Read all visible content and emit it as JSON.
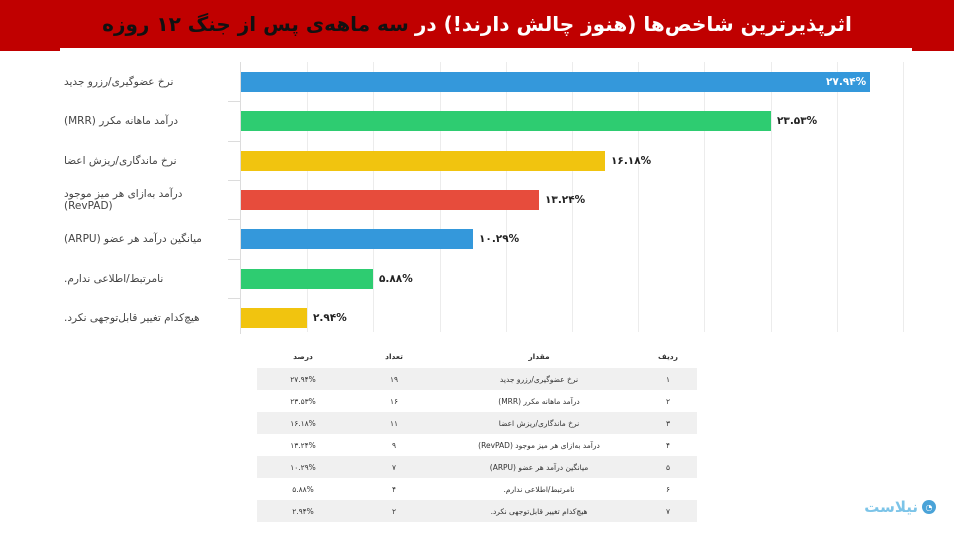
{
  "title": {
    "part_white": "اثرپذیرترین شاخص‌ها (هنوز چالش دارند!) در",
    "part_black": "سه ماهه‌ی پس از جنگ ۱۲ روزه",
    "background_color": "#c00000"
  },
  "chart_data": {
    "type": "bar",
    "orientation": "horizontal",
    "title": "اثرپذیرترین شاخص‌ها (هنوز چالش دارند!) در سه ماهه‌ی پس از جنگ ۱۲ روزه",
    "xlabel": "",
    "ylabel": "",
    "grid": true,
    "categories": [
      "نرخ عضوگیری/رزرو جدید",
      "درآمد ماهانه مکرر (MRR)",
      "نرخ ماندگاری/ریزش اعضا",
      "درآمد به‌ازای هر میز موجود (RevPAD)",
      "میانگین درآمد هر عضو (ARPU)",
      "نامرتبط/اطلاعی ندارم.",
      "هیچ‌کدام تغییر قابل‌توجهی نکرد."
    ],
    "values": [
      27.94,
      23.53,
      16.18,
      13.24,
      10.29,
      5.88,
      2.94
    ],
    "value_labels": [
      "۲۷.۹۴%",
      "۲۳.۵۳%",
      "۱۶.۱۸%",
      "۱۳.۲۴%",
      "۱۰.۲۹%",
      "۵.۸۸%",
      "۲.۹۴%"
    ],
    "counts": [
      19,
      16,
      11,
      9,
      7,
      4,
      2
    ],
    "colors": [
      "#3498db",
      "#2ecc71",
      "#f1c40f",
      "#e74c3c",
      "#3498db",
      "#2ecc71",
      "#f1c40f"
    ],
    "xlim": [
      0,
      30
    ]
  },
  "table": {
    "headers": {
      "rank": "ردیف",
      "label": "مقدار",
      "count": "تعداد",
      "pct": "درصد"
    },
    "rows": [
      {
        "rank": "۱",
        "label": "نرخ عضوگیری/رزرو جدید",
        "count": "۱۹",
        "pct": "۲۷.۹۴%"
      },
      {
        "rank": "۲",
        "label": "درآمد ماهانه مکرر (MRR)",
        "count": "۱۶",
        "pct": "۲۳.۵۳%"
      },
      {
        "rank": "۳",
        "label": "نرخ ماندگاری/ریزش اعضا",
        "count": "۱۱",
        "pct": "۱۶.۱۸%"
      },
      {
        "rank": "۴",
        "label": "درآمد به‌ازای هر میز موجود (RevPAD)",
        "count": "۹",
        "pct": "۱۳.۲۴%"
      },
      {
        "rank": "۵",
        "label": "میانگین درآمد هر عضو (ARPU)",
        "count": "۷",
        "pct": "۱۰.۲۹%"
      },
      {
        "rank": "۶",
        "label": "نامرتبط/اطلاعی ندارم.",
        "count": "۴",
        "pct": "۵.۸۸%"
      },
      {
        "rank": "۷",
        "label": "هیچ‌کدام تغییر قابل‌توجهی نکرد.",
        "count": "۲",
        "pct": "۲.۹۴%"
      }
    ]
  },
  "logo": {
    "text": "نیلاست",
    "icon": "logo-circle-icon"
  }
}
